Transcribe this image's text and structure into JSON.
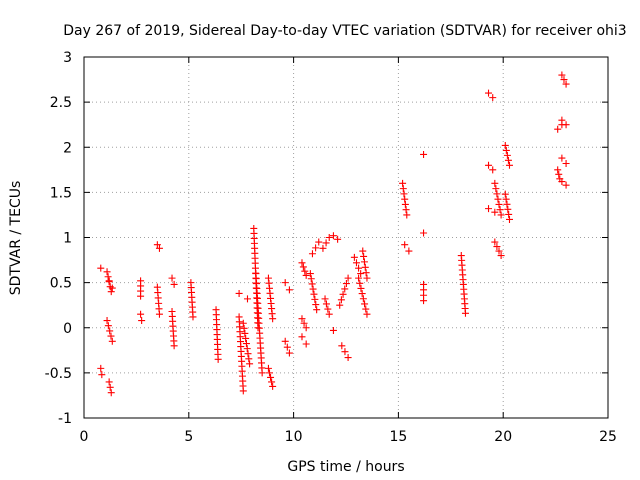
{
  "chart_data": {
    "type": "scatter",
    "title": "Day 267 of 2019, Sidereal Day-to-day VTEC variation (SDTVAR) for receiver ohi3",
    "xlabel": "GPS time / hours",
    "ylabel": "SDTVAR / TECUs",
    "xlim": [
      0,
      25
    ],
    "ylim": [
      -1,
      3
    ],
    "xticks": [
      0,
      5,
      10,
      15,
      20,
      25
    ],
    "yticks": [
      -1,
      -0.5,
      0,
      0.5,
      1,
      1.5,
      2,
      2.5,
      3
    ],
    "xtick_labels": [
      "0",
      "5",
      "10",
      "15",
      "20",
      "25"
    ],
    "ytick_labels": [
      "-1",
      "-0.5",
      "0",
      "0.5",
      "1",
      "1.5",
      "2",
      "2.5",
      "3"
    ],
    "grid": true,
    "marker": "+",
    "color": "#ff0000",
    "series": [
      {
        "name": "SDTVAR",
        "segments": [
          {
            "x0": 0.8,
            "x1": 0.8,
            "y0": 0.66,
            "y1": 0.66
          },
          {
            "x0": 0.8,
            "x1": 0.85,
            "y0": -0.45,
            "y1": -0.52
          },
          {
            "x0": 1.1,
            "x1": 1.3,
            "y0": 0.62,
            "y1": 0.4
          },
          {
            "x0": 1.2,
            "x1": 1.35,
            "y0": 0.52,
            "y1": 0.44
          },
          {
            "x0": 1.1,
            "x1": 1.35,
            "y0": 0.08,
            "y1": -0.15
          },
          {
            "x0": 1.2,
            "x1": 1.3,
            "y0": -0.6,
            "y1": -0.72
          },
          {
            "x0": 2.7,
            "x1": 2.7,
            "y0": 0.52,
            "y1": 0.35
          },
          {
            "x0": 2.7,
            "x1": 2.75,
            "y0": 0.15,
            "y1": 0.08
          },
          {
            "x0": 3.5,
            "x1": 3.6,
            "y0": 0.45,
            "y1": 0.15
          },
          {
            "x0": 3.5,
            "x1": 3.6,
            "y0": 0.92,
            "y1": 0.88
          },
          {
            "x0": 4.2,
            "x1": 4.3,
            "y0": 0.55,
            "y1": 0.48
          },
          {
            "x0": 4.2,
            "x1": 4.3,
            "y0": 0.18,
            "y1": -0.2
          },
          {
            "x0": 5.1,
            "x1": 5.2,
            "y0": 0.5,
            "y1": 0.12
          },
          {
            "x0": 6.3,
            "x1": 6.4,
            "y0": 0.2,
            "y1": -0.35
          },
          {
            "x0": 7.4,
            "x1": 7.8,
            "y0": 0.38,
            "y1": 0.32
          },
          {
            "x0": 7.4,
            "x1": 7.6,
            "y0": 0.12,
            "y1": -0.7
          },
          {
            "x0": 7.6,
            "x1": 7.9,
            "y0": 0.05,
            "y1": -0.4
          },
          {
            "x0": 8.1,
            "x1": 8.3,
            "y0": 1.1,
            "y1": 0.0
          },
          {
            "x0": 8.2,
            "x1": 8.5,
            "y0": 0.6,
            "y1": -0.5
          },
          {
            "x0": 8.8,
            "x1": 9.0,
            "y0": 0.55,
            "y1": 0.1
          },
          {
            "x0": 8.8,
            "x1": 9.0,
            "y0": -0.45,
            "y1": -0.65
          },
          {
            "x0": 9.6,
            "x1": 9.8,
            "y0": 0.5,
            "y1": 0.42
          },
          {
            "x0": 9.6,
            "x1": 9.8,
            "y0": -0.15,
            "y1": -0.28
          },
          {
            "x0": 10.4,
            "x1": 10.6,
            "y0": 0.72,
            "y1": 0.58
          },
          {
            "x0": 10.4,
            "x1": 10.6,
            "y0": 0.1,
            "y1": 0.0
          },
          {
            "x0": 10.4,
            "x1": 10.6,
            "y0": -0.1,
            "y1": -0.18
          },
          {
            "x0": 10.8,
            "x1": 11.1,
            "y0": 0.6,
            "y1": 0.2
          },
          {
            "x0": 10.9,
            "x1": 11.2,
            "y0": 0.82,
            "y1": 0.95
          },
          {
            "x0": 11.4,
            "x1": 11.7,
            "y0": 0.88,
            "y1": 1.0
          },
          {
            "x0": 11.5,
            "x1": 11.7,
            "y0": 0.32,
            "y1": 0.15
          },
          {
            "x0": 11.9,
            "x1": 12.1,
            "y0": 1.02,
            "y1": 0.98
          },
          {
            "x0": 11.9,
            "x1": 12.1,
            "y0": -0.03,
            "y1": -0.05
          },
          {
            "x0": 12.2,
            "x1": 12.6,
            "y0": 0.25,
            "y1": 0.55
          },
          {
            "x0": 12.3,
            "x1": 12.6,
            "y0": -0.2,
            "y1": -0.33
          },
          {
            "x0": 12.9,
            "x1": 13.2,
            "y0": 0.78,
            "y1": 0.6
          },
          {
            "x0": 13.1,
            "x1": 13.5,
            "y0": 0.55,
            "y1": 0.15
          },
          {
            "x0": 13.3,
            "x1": 13.5,
            "y0": 0.85,
            "y1": 0.55
          },
          {
            "x0": 15.2,
            "x1": 15.4,
            "y0": 1.6,
            "y1": 1.25
          },
          {
            "x0": 15.3,
            "x1": 15.5,
            "y0": 0.92,
            "y1": 0.85
          },
          {
            "x0": 16.2,
            "x1": 16.2,
            "y0": 1.92,
            "y1": 1.92
          },
          {
            "x0": 16.2,
            "x1": 16.2,
            "y0": 1.05,
            "y1": 1.05
          },
          {
            "x0": 16.2,
            "x1": 16.2,
            "y0": 0.48,
            "y1": 0.3
          },
          {
            "x0": 18.0,
            "x1": 18.2,
            "y0": 0.8,
            "y1": 0.16
          },
          {
            "x0": 19.3,
            "x1": 19.5,
            "y0": 2.6,
            "y1": 2.55
          },
          {
            "x0": 19.3,
            "x1": 19.5,
            "y0": 1.8,
            "y1": 1.75
          },
          {
            "x0": 19.3,
            "x1": 19.6,
            "y0": 1.32,
            "y1": 1.28
          },
          {
            "x0": 19.6,
            "x1": 19.9,
            "y0": 1.6,
            "y1": 1.25
          },
          {
            "x0": 19.6,
            "x1": 19.9,
            "y0": 0.95,
            "y1": 0.8
          },
          {
            "x0": 20.1,
            "x1": 20.3,
            "y0": 2.02,
            "y1": 1.8
          },
          {
            "x0": 20.1,
            "x1": 20.3,
            "y0": 1.48,
            "y1": 1.2
          },
          {
            "x0": 22.6,
            "x1": 22.8,
            "y0": 2.2,
            "y1": 2.25
          },
          {
            "x0": 22.6,
            "x1": 22.7,
            "y0": 1.75,
            "y1": 1.65
          },
          {
            "x0": 22.8,
            "x1": 23.0,
            "y0": 2.8,
            "y1": 2.7
          },
          {
            "x0": 22.8,
            "x1": 23.0,
            "y0": 2.3,
            "y1": 2.25
          },
          {
            "x0": 22.8,
            "x1": 23.0,
            "y0": 1.88,
            "y1": 1.82
          },
          {
            "x0": 22.8,
            "x1": 23.0,
            "y0": 1.62,
            "y1": 1.58
          }
        ]
      }
    ]
  }
}
